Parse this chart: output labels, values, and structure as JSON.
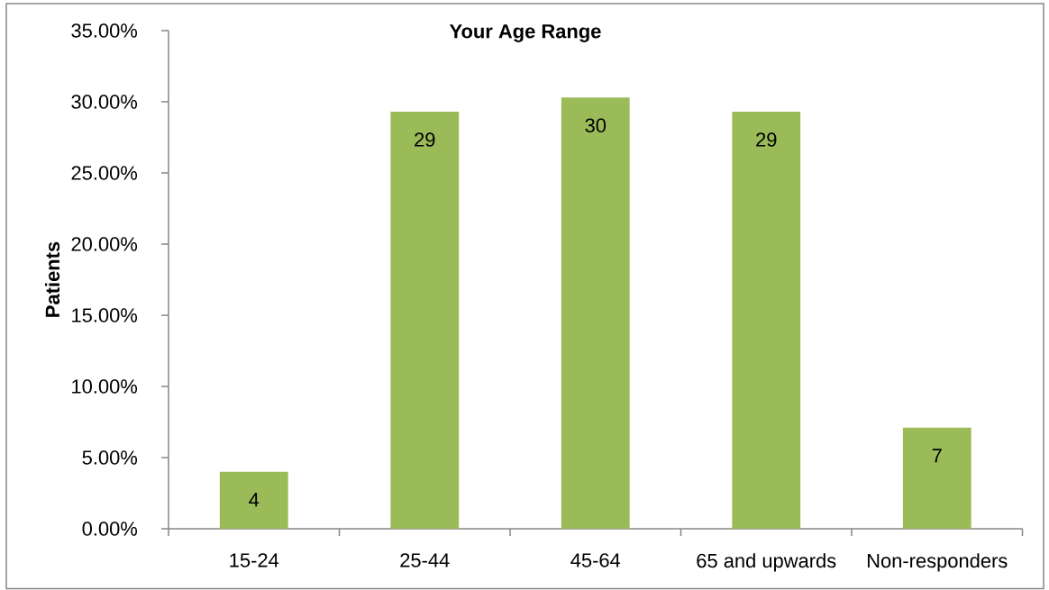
{
  "chart_data": {
    "type": "bar",
    "title": "Your Age Range",
    "ylabel": "Patients",
    "categories": [
      "15-24",
      "25-44",
      "45-64",
      "65 and upwards",
      "Non-responders"
    ],
    "values": [
      4.0,
      29.3,
      30.3,
      29.3,
      7.1
    ],
    "value_labels": [
      "4",
      "29",
      "30",
      "29",
      "7"
    ],
    "color": "#9bbb59",
    "ylim": [
      0,
      35
    ],
    "yticks": [
      {
        "value": 0,
        "label": "0.00%"
      },
      {
        "value": 5,
        "label": "5.00%"
      },
      {
        "value": 10,
        "label": "10.00%"
      },
      {
        "value": 15,
        "label": "15.00%"
      },
      {
        "value": 20,
        "label": "20.00%"
      },
      {
        "value": 25,
        "label": "25.00%"
      },
      {
        "value": 30,
        "label": "30.00%"
      },
      {
        "value": 35,
        "label": "35.00%"
      }
    ]
  }
}
